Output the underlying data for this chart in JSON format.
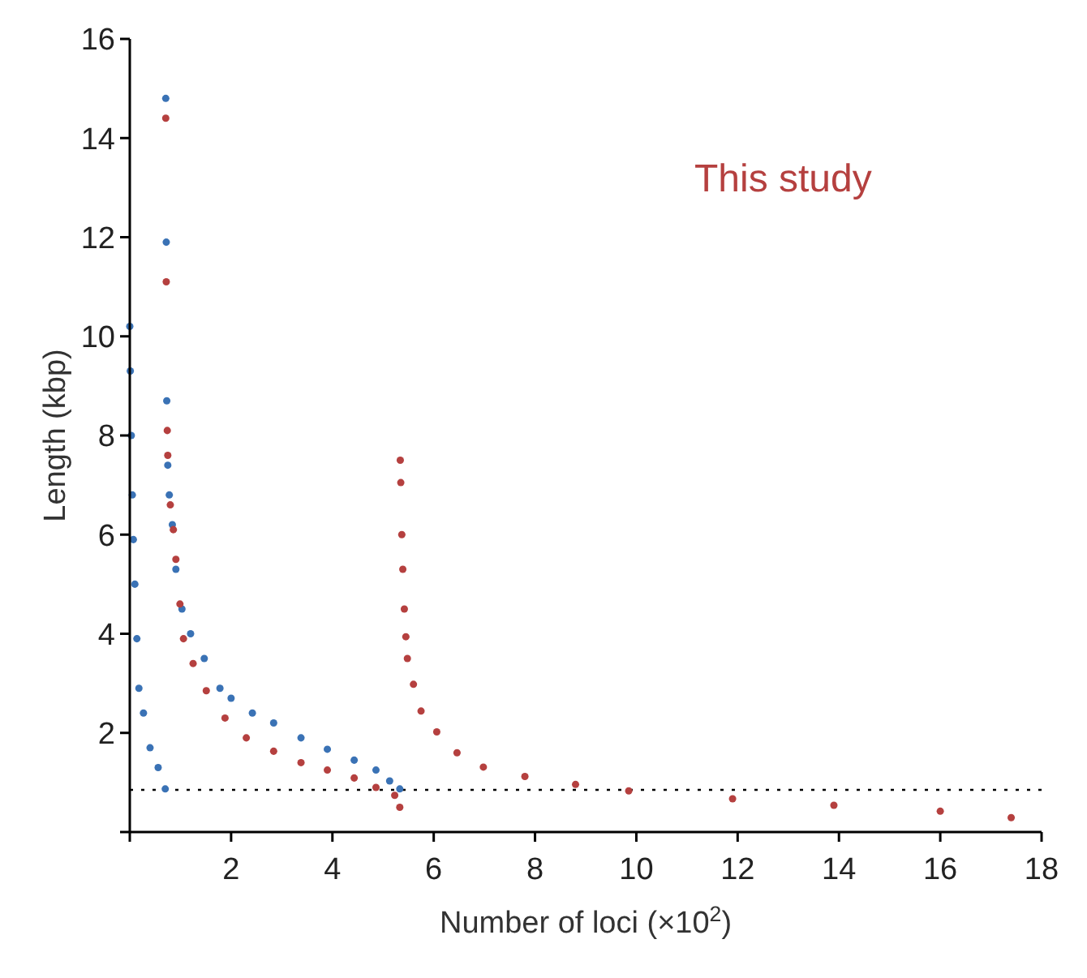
{
  "chart_data": {
    "type": "scatter",
    "xlabel": "Number of loci (×10$^{2}$)",
    "ylabel": "Length (kbp)",
    "xlim": [
      0,
      18
    ],
    "ylim": [
      0,
      16
    ],
    "xticks": [
      {
        "value": 0,
        "label": null
      },
      2,
      4,
      6,
      8,
      10,
      12,
      14,
      16,
      18
    ],
    "yticks": [
      {
        "value": 0,
        "label": null
      },
      2,
      4,
      6,
      8,
      10,
      12,
      14,
      16
    ],
    "marker": "circle",
    "legend": "top right",
    "grid": false,
    "ref_lines": [
      {
        "axis": "y",
        "value": 0.85,
        "line_style": "dotted",
        "color": "#000000"
      }
    ],
    "series": [
      {
        "color": "#3a72b5",
        "x": [
          0,
          0.01,
          0.03,
          0.05,
          0.07,
          0.1,
          0.14,
          0.18,
          0.27,
          0.4,
          0.56,
          0.7,
          0.71,
          0.72,
          0.73,
          0.75,
          0.78,
          0.84,
          0.91,
          1.03,
          1.2,
          1.47,
          1.78,
          2.0,
          2.42,
          2.84,
          3.38,
          3.9,
          4.43,
          4.86,
          5.13,
          5.33
        ],
        "values": [
          10.2,
          9.3,
          8.0,
          6.8,
          5.9,
          5.0,
          3.9,
          2.9,
          2.4,
          1.7,
          1.3,
          0.87,
          14.8,
          11.9,
          8.7,
          7.4,
          6.8,
          6.2,
          5.3,
          4.5,
          4.0,
          3.5,
          2.9,
          2.7,
          2.4,
          2.2,
          1.9,
          1.67,
          1.45,
          1.25,
          1.03,
          0.87
        ]
      },
      {
        "name": "This study",
        "color": "#b5403f",
        "x": [
          0.71,
          0.72,
          0.74,
          0.75,
          0.8,
          0.86,
          0.91,
          0.99,
          1.06,
          1.25,
          1.51,
          1.88,
          2.3,
          2.84,
          3.38,
          3.9,
          4.43,
          4.86,
          5.23,
          5.33,
          5.34,
          5.35,
          5.37,
          5.39,
          5.42,
          5.45,
          5.48,
          5.6,
          5.75,
          6.06,
          6.46,
          6.98,
          7.8,
          8.8,
          9.85,
          11.9,
          13.9,
          16.0,
          17.4
        ],
        "values": [
          14.4,
          11.1,
          8.1,
          7.6,
          6.6,
          6.1,
          5.5,
          4.6,
          3.9,
          3.4,
          2.85,
          2.3,
          1.9,
          1.63,
          1.4,
          1.25,
          1.09,
          0.9,
          0.74,
          0.5,
          7.5,
          7.05,
          6.0,
          5.3,
          4.5,
          3.94,
          3.5,
          2.98,
          2.44,
          2.02,
          1.6,
          1.31,
          1.12,
          0.96,
          0.83,
          0.67,
          0.54,
          0.42,
          0.29
        ]
      }
    ]
  }
}
